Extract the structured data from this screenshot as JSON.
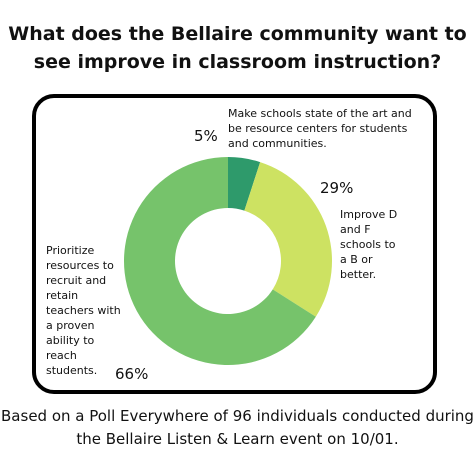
{
  "chart_data": {
    "type": "pie",
    "title": "What does the Bellaire community want to see improve in classroom instruction?",
    "categories": [
      "Make schools state of the art and be resource centers for students and communities.",
      "Improve D and F schools to a B or better.",
      "Prioritize resources to recruit and retain teachers with a proven ability to reach students."
    ],
    "values": [
      5,
      29,
      66
    ],
    "value_labels": [
      "5%",
      "29%",
      "66%"
    ],
    "colors": [
      "#2e9a6b",
      "#cde262",
      "#76c36b"
    ],
    "donut": true,
    "legend": "none"
  },
  "footnote": "Based on a Poll Everywhere of 96 individuals conducted during the Bellaire Listen & Learn event on 10/01."
}
